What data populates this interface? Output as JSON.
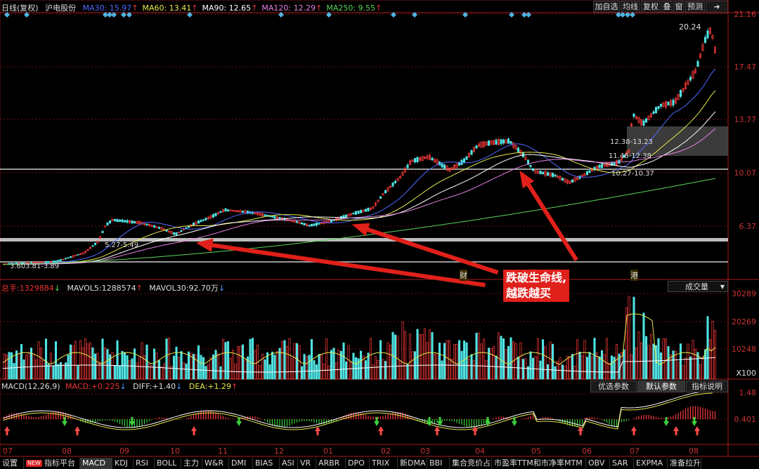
{
  "header": {
    "period": "日线(复权)",
    "stock_name": "沪电股份",
    "ma": [
      {
        "label": "MA30:",
        "value": "15.97",
        "arrow": "↑",
        "color": "#4f6bff"
      },
      {
        "label": "MA60:",
        "value": "13.41",
        "arrow": "↑",
        "color": "#e8e84a"
      },
      {
        "label": "MA90:",
        "value": "12.65",
        "arrow": "↑",
        "color": "#ffffff"
      },
      {
        "label": "MA120:",
        "value": "12.29",
        "arrow": "↑",
        "color": "#e080e0"
      },
      {
        "label": "MA250:",
        "value": "9.55",
        "arrow": "↑",
        "color": "#5ad35a"
      }
    ]
  },
  "toolbar": {
    "add_fav": "加自选",
    "avg_line": "均线",
    "restore_rights": "复权",
    "overlay": "叠",
    "window": "窗",
    "forecast": "预测",
    "arrow_btn": "➜"
  },
  "price_axis": [
    "21.16",
    "17.47",
    "13.77",
    "10.07",
    "6.37"
  ],
  "price_annotations": {
    "high": "20.24",
    "low": "3.60",
    "range_low": "3.81-3.89",
    "range_1": "5.27-5.49",
    "range_2": "12.38-13.23",
    "range_3": "11.46-12.38",
    "range_4": "10.27-10.37"
  },
  "event_markers": {
    "finance": "财",
    "hk_connect": "港"
  },
  "callout": {
    "line1": "跌破生命线,",
    "line2": "越跌越买"
  },
  "volume": {
    "total_label": "总手:",
    "total_value": "1329884",
    "total_arrow": "↓",
    "mavol5_label": "MAVOL5:",
    "mavol5_value": "1288574",
    "mavol5_arrow": "↑",
    "mavol30_label": "MAVOL30:",
    "mavol30_value": "92.70万",
    "mavol30_arrow": "↓",
    "dropdown": "成交量",
    "axis": [
      "30289",
      "20269",
      "10248"
    ],
    "unit": "X100"
  },
  "macd": {
    "title": "MACD(12,26,9)",
    "macd_label": "MACD:",
    "macd_value": "+0.225",
    "macd_arrow": "↓",
    "diff_label": "DIFF:",
    "diff_value": "+1.40",
    "diff_arrow": "↓",
    "dea_label": "DEA:",
    "dea_value": "+1.29",
    "dea_arrow": "↑",
    "btn_optimize": "优选参数",
    "btn_default": "默认参数",
    "btn_explain": "指标说明",
    "axis_top": "1.48",
    "axis_mid": "0.401"
  },
  "months": [
    "07",
    "08",
    "09",
    "10",
    "11",
    "12",
    "01",
    "02",
    "03",
    "04",
    "05",
    "06",
    "07",
    "08"
  ],
  "bottom_tabs": [
    {
      "label": "设置",
      "selected": false,
      "new": false
    },
    {
      "label": "指标平台",
      "selected": false,
      "new": true
    },
    {
      "label": "MACD",
      "selected": true,
      "new": false
    },
    {
      "label": "KDJ",
      "selected": false,
      "new": false
    },
    {
      "label": "RSI",
      "selected": false,
      "new": false
    },
    {
      "label": "BOLL",
      "selected": false,
      "new": false
    },
    {
      "label": "主力",
      "selected": false,
      "new": false
    },
    {
      "label": "W&R",
      "selected": false,
      "new": false
    },
    {
      "label": "DMI",
      "selected": false,
      "new": false
    },
    {
      "label": "BIAS",
      "selected": false,
      "new": false
    },
    {
      "label": "ASI",
      "selected": false,
      "new": false
    },
    {
      "label": "VR",
      "selected": false,
      "new": false
    },
    {
      "label": "ARBR",
      "selected": false,
      "new": false
    },
    {
      "label": "DPO",
      "selected": false,
      "new": false
    },
    {
      "label": "TRIX",
      "selected": false,
      "new": false
    },
    {
      "label": "新DMA",
      "selected": false,
      "new": false
    },
    {
      "label": "BBI",
      "selected": false,
      "new": false
    },
    {
      "label": "集合竞价占",
      "selected": false,
      "new": false
    },
    {
      "label": "市盈率TTM和市净率",
      "selected": false,
      "new": false
    },
    {
      "label": "MTM",
      "selected": false,
      "new": false
    },
    {
      "label": "OBV",
      "selected": false,
      "new": false
    },
    {
      "label": "SAR",
      "selected": false,
      "new": false
    },
    {
      "label": "EXPMA",
      "selected": false,
      "new": false
    },
    {
      "label": "准备拉升",
      "selected": false,
      "new": false
    }
  ],
  "new_badge": "NEW"
}
